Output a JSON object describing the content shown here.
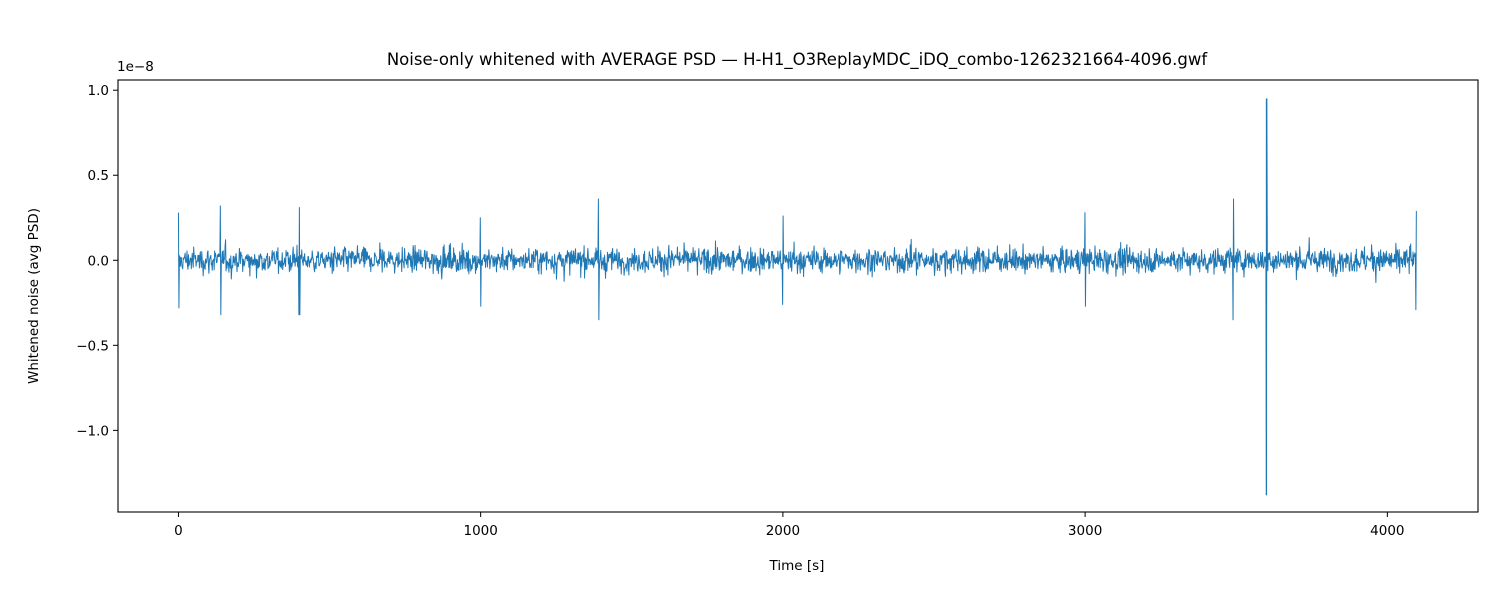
{
  "chart_data": {
    "type": "line",
    "title": "Noise-only whitened with AVERAGE PSD — H-H1_O3ReplayMDC_iDQ_combo-1262321664-4096.gwf",
    "xlabel": "Time [s]",
    "ylabel": "Whitened noise (avg PSD)",
    "y_offset_label": "1e−8",
    "y_scale_factor": 1e-08,
    "xlim": [
      -200,
      4300
    ],
    "ylim": [
      -1.48,
      1.06
    ],
    "x_ticks": [
      0,
      1000,
      2000,
      3000,
      4000
    ],
    "x_tick_labels": [
      "0",
      "1000",
      "2000",
      "3000",
      "4000"
    ],
    "y_ticks": [
      -1.0,
      -0.5,
      0.0,
      0.5,
      1.0
    ],
    "y_tick_labels": [
      "−1.0",
      "−0.5",
      "0.0",
      "0.5",
      "1.0"
    ],
    "grid": false,
    "series": [
      {
        "color": "#1f77b4",
        "x_range": [
          0,
          4096
        ],
        "typical_band": [
          -0.18,
          0.18
        ],
        "envelope": [
          {
            "x": 0,
            "min": -0.28,
            "max": 0.28
          },
          {
            "x": 140,
            "min": -0.32,
            "max": 0.32
          },
          {
            "x": 400,
            "min": -0.32,
            "max": 0.31
          },
          {
            "x": 1000,
            "min": -0.27,
            "max": 0.25
          },
          {
            "x": 1390,
            "min": -0.35,
            "max": 0.36
          },
          {
            "x": 2000,
            "min": -0.26,
            "max": 0.26
          },
          {
            "x": 3000,
            "min": -0.27,
            "max": 0.28
          },
          {
            "x": 3490,
            "min": -0.35,
            "max": 0.36
          },
          {
            "x": 3600,
            "min": -1.38,
            "max": 0.95
          },
          {
            "x": 4096,
            "min": -0.29,
            "max": 0.29
          }
        ]
      }
    ]
  }
}
